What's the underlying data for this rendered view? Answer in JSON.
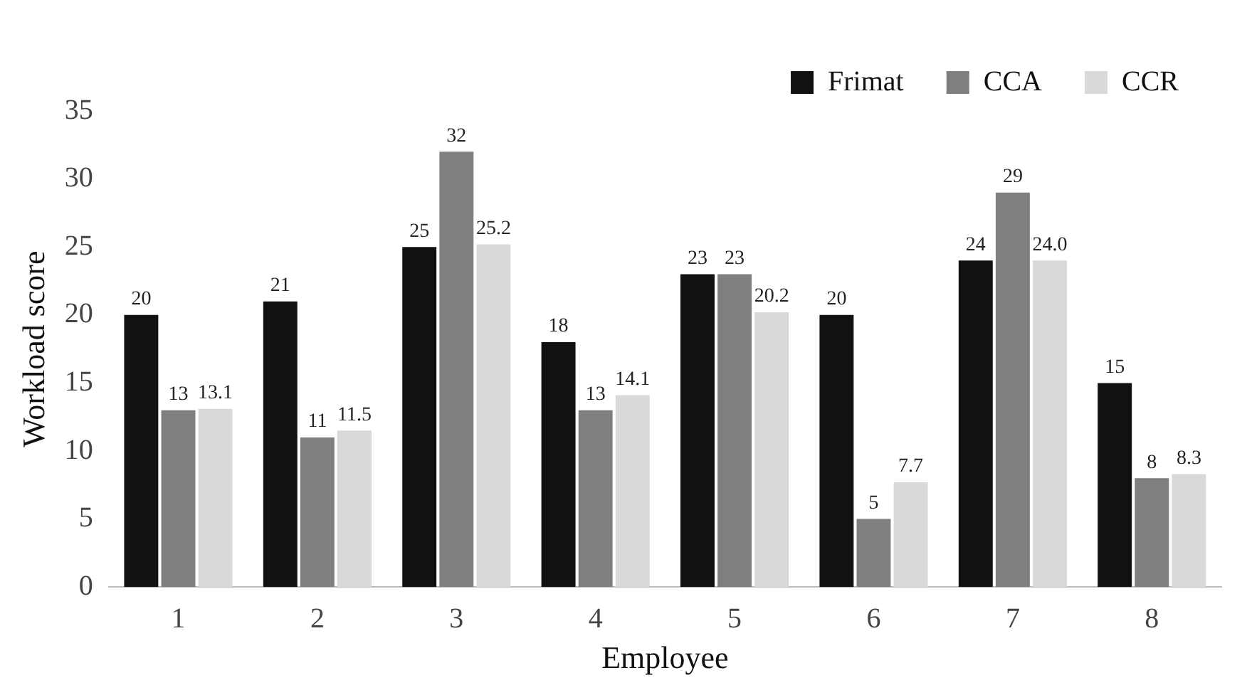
{
  "chart_data": {
    "type": "bar",
    "xlabel": "Employee",
    "ylabel": "Workload score",
    "categories": [
      "1",
      "2",
      "3",
      "4",
      "5",
      "6",
      "7",
      "8"
    ],
    "series": [
      {
        "name": "Frimat",
        "color": "#111111",
        "values": [
          20,
          21,
          25,
          18,
          23,
          20,
          24,
          15
        ],
        "value_labels": [
          "20",
          "21",
          "25",
          "18",
          "23",
          "20",
          "24",
          "15"
        ]
      },
      {
        "name": "CCA",
        "color": "#7f7f7f",
        "values": [
          13,
          11,
          32,
          13,
          23,
          5,
          29,
          8
        ],
        "value_labels": [
          "13",
          "11",
          "32",
          "13",
          "23",
          "5",
          "29",
          "8"
        ]
      },
      {
        "name": "CCR",
        "color": "#d9d9d9",
        "values": [
          13.1,
          11.5,
          25.2,
          14.1,
          20.2,
          7.7,
          24.0,
          8.3
        ],
        "value_labels": [
          "13.1",
          "11.5",
          "25.2",
          "14.1",
          "20.2",
          "7.7",
          "24.0",
          "8.3"
        ]
      }
    ],
    "ylim": [
      0,
      35
    ],
    "yticks": [
      0,
      5,
      10,
      15,
      20,
      25,
      30,
      35
    ],
    "grid": false,
    "legend": "top right"
  }
}
